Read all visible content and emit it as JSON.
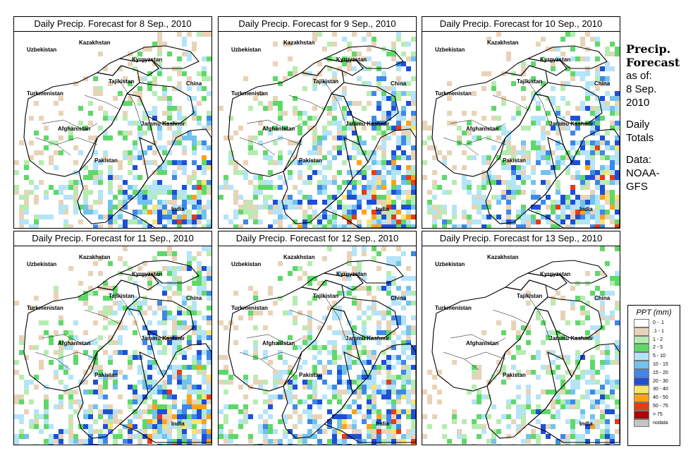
{
  "panels": [
    {
      "title": "Daily Precip. Forecast for  8 Sep., 2010",
      "seed": 11,
      "dry": 0.55
    },
    {
      "title": "Daily Precip. Forecast for  9 Sep., 2010",
      "seed": 23,
      "dry": 0.45
    },
    {
      "title": "Daily Precip. Forecast for  10 Sep., 2010",
      "seed": 37,
      "dry": 0.5
    },
    {
      "title": "Daily Precip. Forecast for  11 Sep., 2010",
      "seed": 41,
      "dry": 0.45
    },
    {
      "title": "Daily Precip. Forecast for  12 Sep., 2010",
      "seed": 53,
      "dry": 0.45
    },
    {
      "title": "Daily Precip. Forecast for  13 Sep., 2010",
      "seed": 67,
      "dry": 0.65
    }
  ],
  "map_labels": {
    "uzbekistan": "Uzbekistan",
    "kazakhstan": "Kazakhstan",
    "kyrgyzstan": "Kyrgyzstan",
    "tajikistan": "Tajikistan",
    "china": "China",
    "turkmenistan": "Turkmenistan",
    "afghanistan": "Afghanistan",
    "jammu_kashmir": "Jammu Kashmir",
    "pakistan": "Pakistan",
    "india": "India"
  },
  "sidebar": {
    "heading_line1": "Precip.",
    "heading_line2": "Forecast",
    "as_of": "as of:",
    "date_line1": "8 Sep.",
    "date_line2": "2010",
    "daily": "Daily",
    "totals": "Totals",
    "data": "Data:",
    "source_line1": "NOAA-",
    "source_line2": "GFS"
  },
  "legend": {
    "title": "PPT (mm)",
    "items": [
      {
        "label": "0 - .1",
        "color": "#ffffff"
      },
      {
        "label": ".1 - 1",
        "color": "#e8d3b8"
      },
      {
        "label": "1 - 2",
        "color": "#b6ecb0"
      },
      {
        "label": "2 - 5",
        "color": "#5fd86a"
      },
      {
        "label": "5 - 10",
        "color": "#b4e4f8"
      },
      {
        "label": "10 - 15",
        "color": "#72c2ef"
      },
      {
        "label": "15 - 20",
        "color": "#3d88e8"
      },
      {
        "label": "20 - 30",
        "color": "#1d4fd8"
      },
      {
        "label": "30 - 40",
        "color": "#ffe36b"
      },
      {
        "label": "40 - 50",
        "color": "#ffa11c"
      },
      {
        "label": "50 - 75",
        "color": "#e83a14"
      },
      {
        "label": "> 75",
        "color": "#9e0c0c"
      },
      {
        "label": "nodata",
        "color": "#c4c4c4"
      }
    ]
  }
}
